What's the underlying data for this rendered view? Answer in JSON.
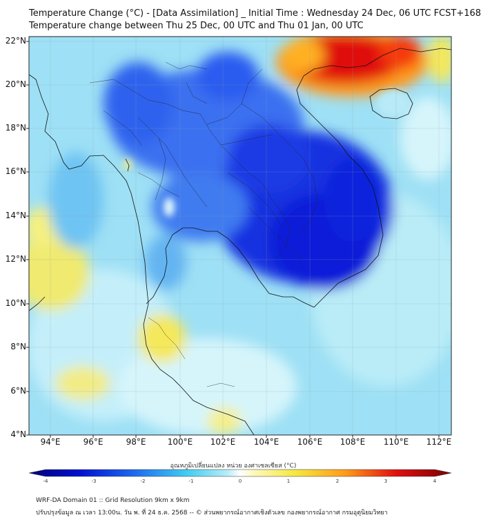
{
  "header": {
    "title_line1": "Temperature Change (°C) - [Data Assimilation] _ Initial Time : Wednesday 24 Dec, 06 UTC FCST+168",
    "title_line2": "Temperature change between Thu 25 Dec, 00 UTC and Thu 01 Jan, 00 UTC"
  },
  "map": {
    "lat_labels": [
      "22°N",
      "20°N",
      "18°N",
      "16°N",
      "14°N",
      "12°N",
      "10°N",
      "8°N",
      "6°N",
      "4°N"
    ],
    "lon_labels": [
      "94°E",
      "96°E",
      "98°E",
      "100°E",
      "102°E",
      "104°E",
      "106°E",
      "108°E",
      "110°E",
      "112°E"
    ],
    "lat_range": [
      4,
      22.3
    ],
    "lon_range": [
      93,
      112.8
    ],
    "colors": {
      "strong_cool": "#0a1ed8",
      "cool": "#2a5cf0",
      "mild_cool": "#5ec8f2",
      "neutral": "#c8f0fa",
      "warm": "#f5e85a",
      "hot": "#ff9a1a",
      "very_hot": "#e01010"
    }
  },
  "colorbar": {
    "label": "อุณหภูมิเปลี่ยนแปลง หน่วย องศาเซลเซียส (°C)",
    "ticks": [
      "-4",
      "-3",
      "-2",
      "-1",
      "0",
      "1",
      "2",
      "3",
      "4"
    ],
    "range": [
      -4,
      4
    ]
  },
  "footer": {
    "line1": "WRF-DA Domain 01 :: Grid Resolution 9km x 9km",
    "line2": "ปรับปรุงข้อมูล ณ เวลา 13:00น. วัน พ. ที่ 24 ธ.ค. 2568 -- © ส่วนพยากรณ์อากาศเชิงตัวเลข กองพยากรณ์อากาศ กรมอุตุนิยมวิทยา"
  }
}
